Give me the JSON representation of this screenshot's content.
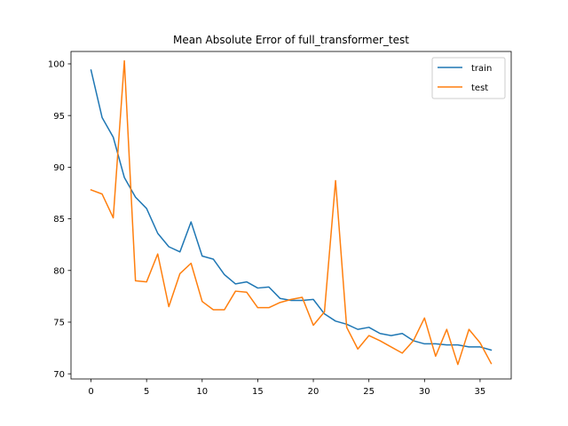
{
  "chart_data": {
    "type": "line",
    "title": "Mean Absolute Error of full_transformer_test",
    "xlabel": "",
    "ylabel": "",
    "xlim": [
      -1.8,
      37.8
    ],
    "ylim": [
      69.5,
      101.2
    ],
    "xticks": [
      0,
      5,
      10,
      15,
      20,
      25,
      30,
      35
    ],
    "yticks": [
      70,
      75,
      80,
      85,
      90,
      95,
      100
    ],
    "grid": false,
    "legend_position": "top-right",
    "x": [
      0,
      1,
      2,
      3,
      4,
      5,
      6,
      7,
      8,
      9,
      10,
      11,
      12,
      13,
      14,
      15,
      16,
      17,
      18,
      19,
      20,
      21,
      22,
      23,
      24,
      25,
      26,
      27,
      28,
      29,
      30,
      31,
      32,
      33,
      34,
      35,
      36
    ],
    "series": [
      {
        "name": "train",
        "color": "#1f77b4",
        "values": [
          99.4,
          94.8,
          92.9,
          89.0,
          87.1,
          86.0,
          83.6,
          82.3,
          81.8,
          84.7,
          81.4,
          81.1,
          79.6,
          78.7,
          78.9,
          78.3,
          78.4,
          77.3,
          77.1,
          77.1,
          77.2,
          75.8,
          75.1,
          74.8,
          74.3,
          74.5,
          73.9,
          73.7,
          73.9,
          73.2,
          72.9,
          72.9,
          72.8,
          72.8,
          72.6,
          72.6,
          72.3
        ]
      },
      {
        "name": "test",
        "color": "#ff7f0e",
        "values": [
          87.8,
          87.4,
          85.1,
          100.3,
          79.0,
          78.9,
          81.6,
          76.5,
          79.7,
          80.7,
          77.0,
          76.2,
          76.2,
          78.0,
          77.9,
          76.4,
          76.4,
          76.9,
          77.2,
          77.4,
          74.7,
          76.0,
          88.7,
          74.5,
          72.4,
          73.7,
          73.2,
          72.6,
          72.0,
          73.2,
          75.4,
          71.7,
          74.3,
          70.9,
          74.3,
          73.0,
          71.0
        ]
      }
    ]
  }
}
